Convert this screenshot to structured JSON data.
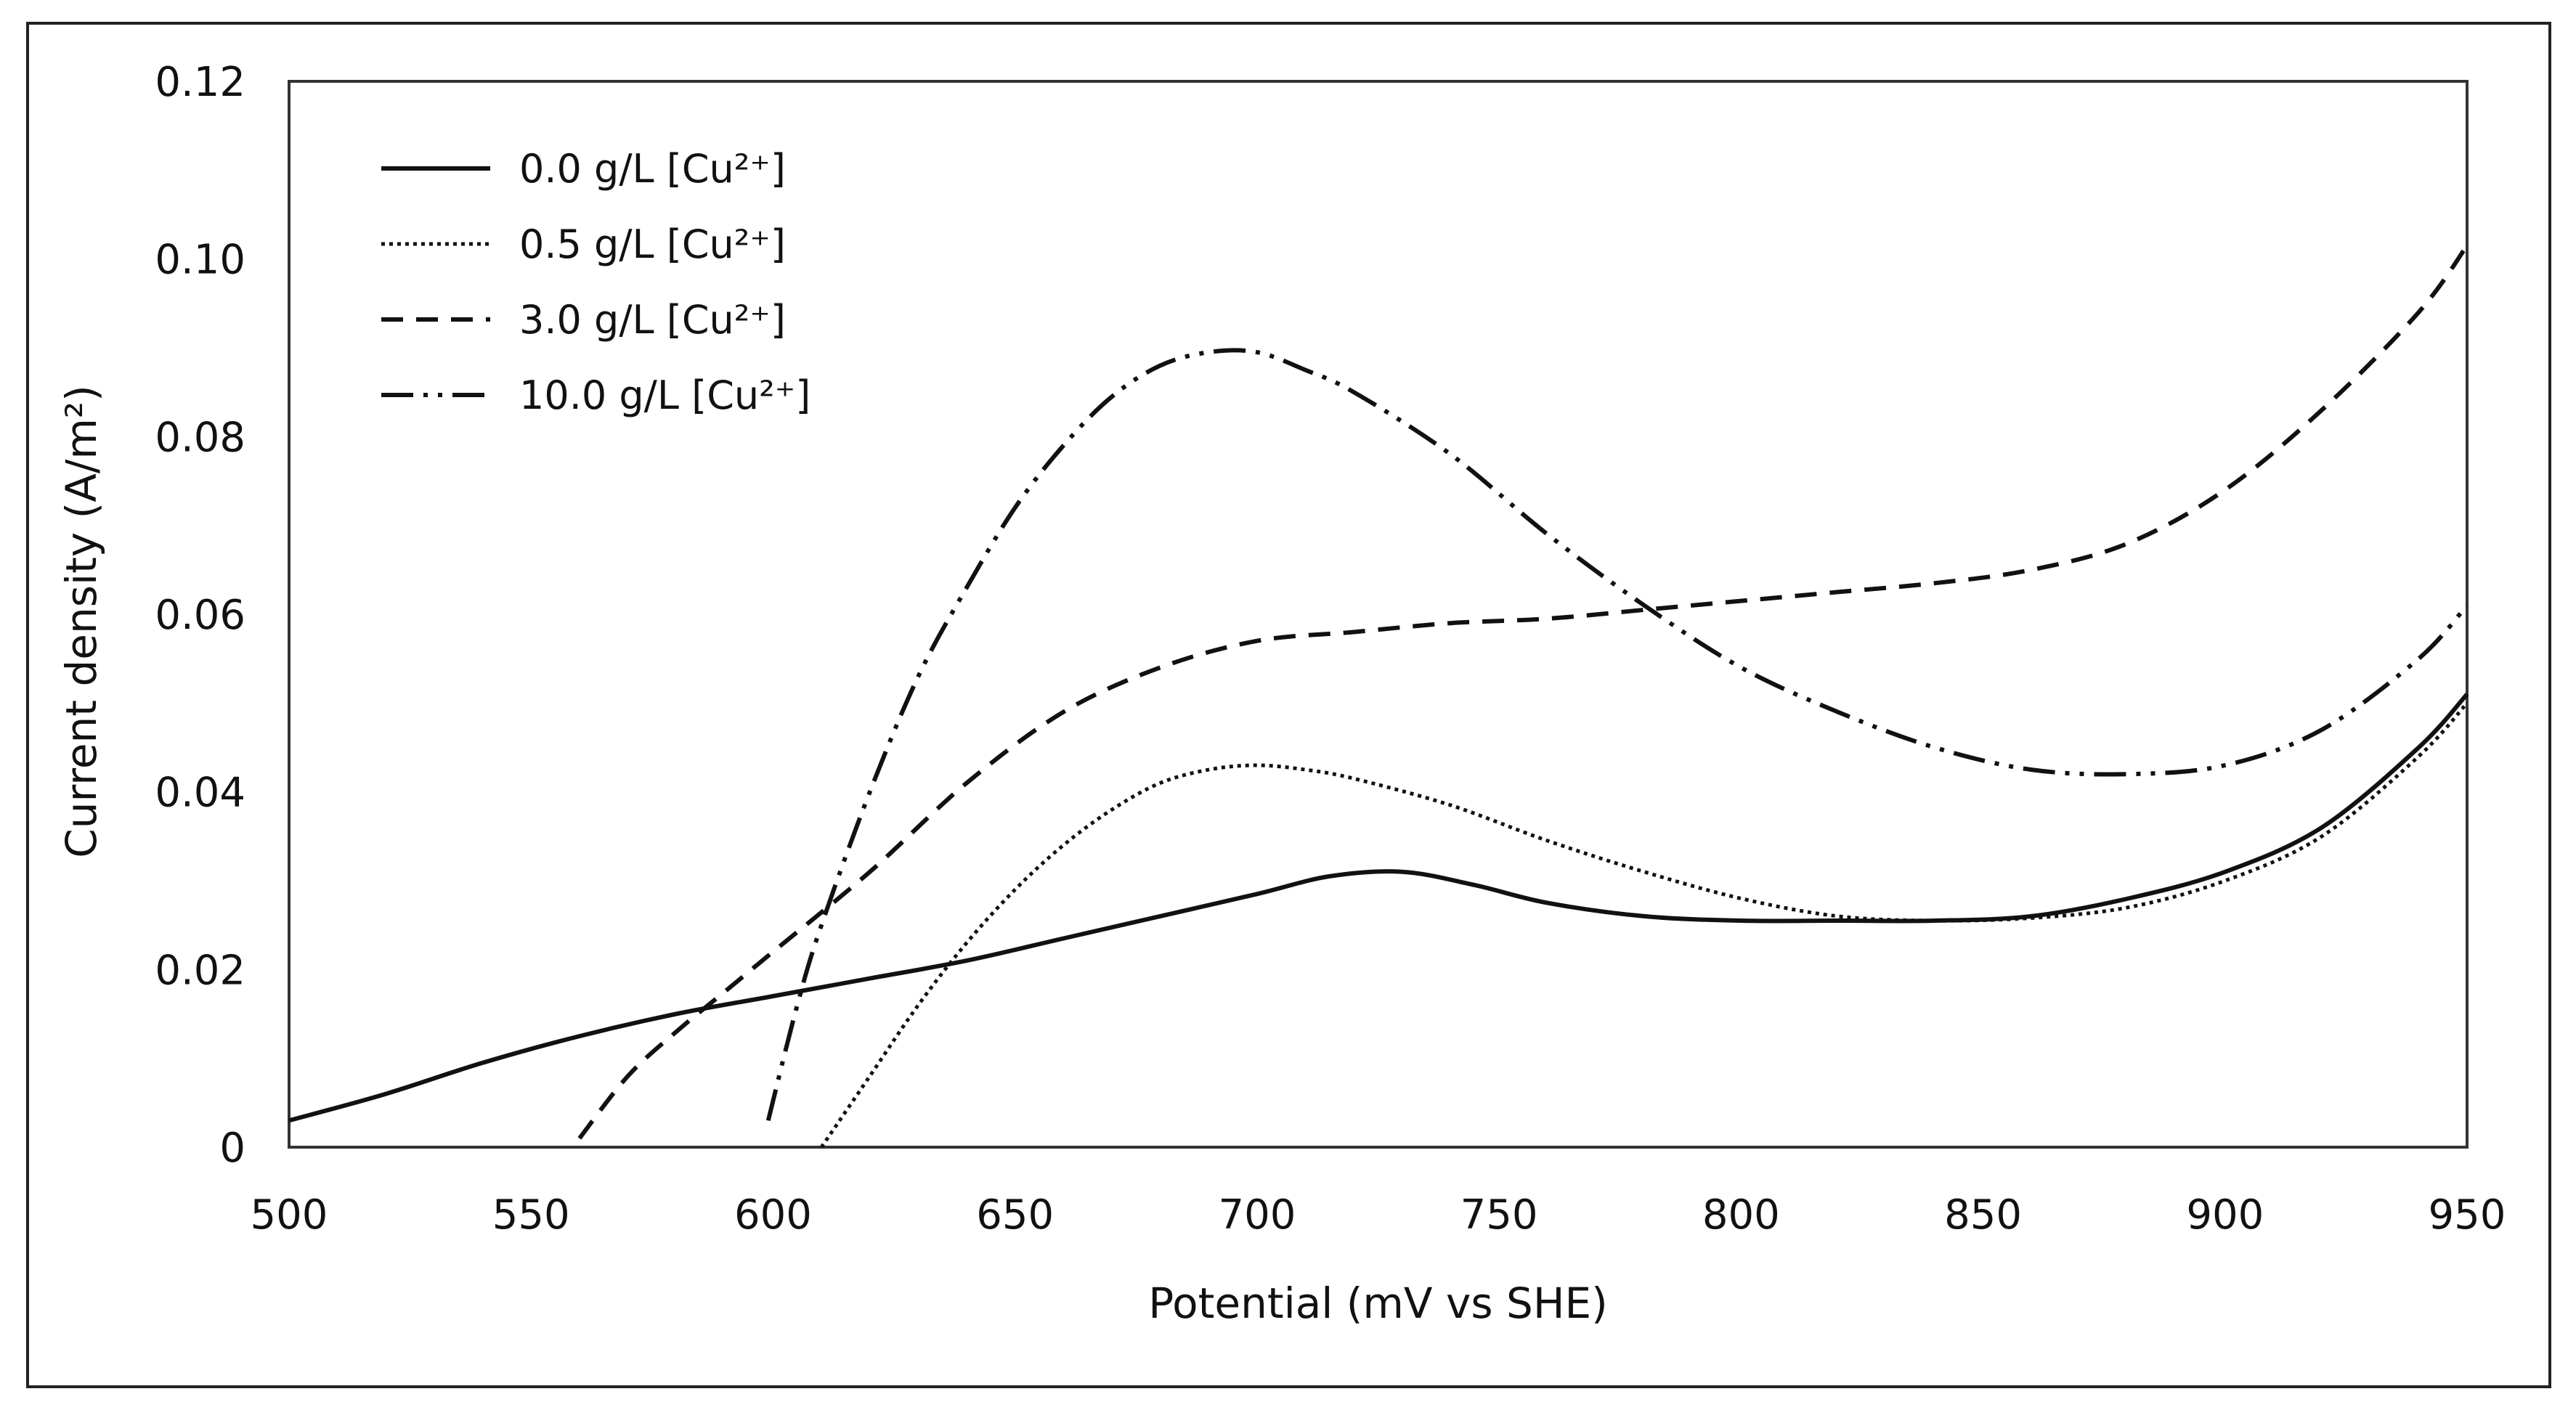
{
  "chart_data": {
    "type": "line",
    "title": "",
    "xlabel": "Potential (mV vs SHE)",
    "ylabel": "Current density (A/m²)",
    "xlim": [
      500,
      950
    ],
    "ylim": [
      0,
      0.12
    ],
    "x_ticks": [
      500,
      550,
      600,
      650,
      700,
      750,
      800,
      850,
      900,
      950
    ],
    "x_tick_labels": [
      "500",
      "550",
      "600",
      "650",
      "700",
      "750",
      "800",
      "850",
      "900",
      "950"
    ],
    "y_ticks": [
      0,
      0.02,
      0.04,
      0.06,
      0.08,
      0.1,
      0.12
    ],
    "y_tick_labels": [
      "0",
      "0.02",
      "0.04",
      "0.06",
      "0.08",
      "0.10",
      "0.12"
    ],
    "grid": false,
    "legend_position": "top-left",
    "series": [
      {
        "name": "0.0 g/L [Cu²⁺]",
        "style": "solid",
        "x": [
          500,
          520,
          540,
          560,
          580,
          600,
          620,
          640,
          660,
          680,
          700,
          715,
          730,
          745,
          760,
          780,
          800,
          820,
          840,
          860,
          880,
          900,
          920,
          940,
          950
        ],
        "y": [
          0.003,
          0.006,
          0.0095,
          0.0125,
          0.015,
          0.017,
          0.019,
          0.021,
          0.0235,
          0.026,
          0.0285,
          0.0305,
          0.031,
          0.0295,
          0.0275,
          0.026,
          0.0255,
          0.0255,
          0.0255,
          0.026,
          0.028,
          0.031,
          0.036,
          0.045,
          0.051
        ]
      },
      {
        "name": "0.5 g/L [Cu²⁺]",
        "style": "dotted",
        "x": [
          610,
          620,
          630,
          640,
          650,
          660,
          670,
          680,
          690,
          700,
          710,
          720,
          740,
          760,
          780,
          800,
          820,
          840,
          860,
          880,
          900,
          920,
          940,
          950
        ],
        "y": [
          0.0,
          0.008,
          0.016,
          0.023,
          0.029,
          0.034,
          0.038,
          0.041,
          0.0425,
          0.043,
          0.0425,
          0.0415,
          0.0385,
          0.0345,
          0.031,
          0.028,
          0.026,
          0.0255,
          0.0258,
          0.027,
          0.03,
          0.035,
          0.044,
          0.05
        ]
      },
      {
        "name": "3.0 g/L [Cu²⁺]",
        "style": "dashed",
        "x": [
          560,
          570,
          580,
          590,
          600,
          620,
          640,
          660,
          680,
          700,
          720,
          740,
          760,
          780,
          800,
          820,
          840,
          860,
          880,
          900,
          920,
          940,
          950
        ],
        "y": [
          0.001,
          0.008,
          0.013,
          0.0175,
          0.022,
          0.031,
          0.041,
          0.049,
          0.054,
          0.057,
          0.058,
          0.059,
          0.0595,
          0.0605,
          0.0615,
          0.0625,
          0.0635,
          0.065,
          0.068,
          0.074,
          0.083,
          0.094,
          0.1015
        ]
      },
      {
        "name": "10.0 g/L [Cu²⁺]",
        "style": "dash-dot-dot",
        "x": [
          599,
          605,
          610,
          620,
          630,
          640,
          650,
          660,
          670,
          680,
          690,
          700,
          710,
          720,
          740,
          760,
          780,
          800,
          820,
          840,
          860,
          880,
          900,
          920,
          940,
          950
        ],
        "y": [
          0.003,
          0.016,
          0.025,
          0.04,
          0.053,
          0.063,
          0.072,
          0.079,
          0.0845,
          0.088,
          0.0895,
          0.0895,
          0.0875,
          0.085,
          0.078,
          0.069,
          0.061,
          0.054,
          0.049,
          0.045,
          0.0425,
          0.042,
          0.043,
          0.047,
          0.055,
          0.061
        ]
      }
    ]
  }
}
